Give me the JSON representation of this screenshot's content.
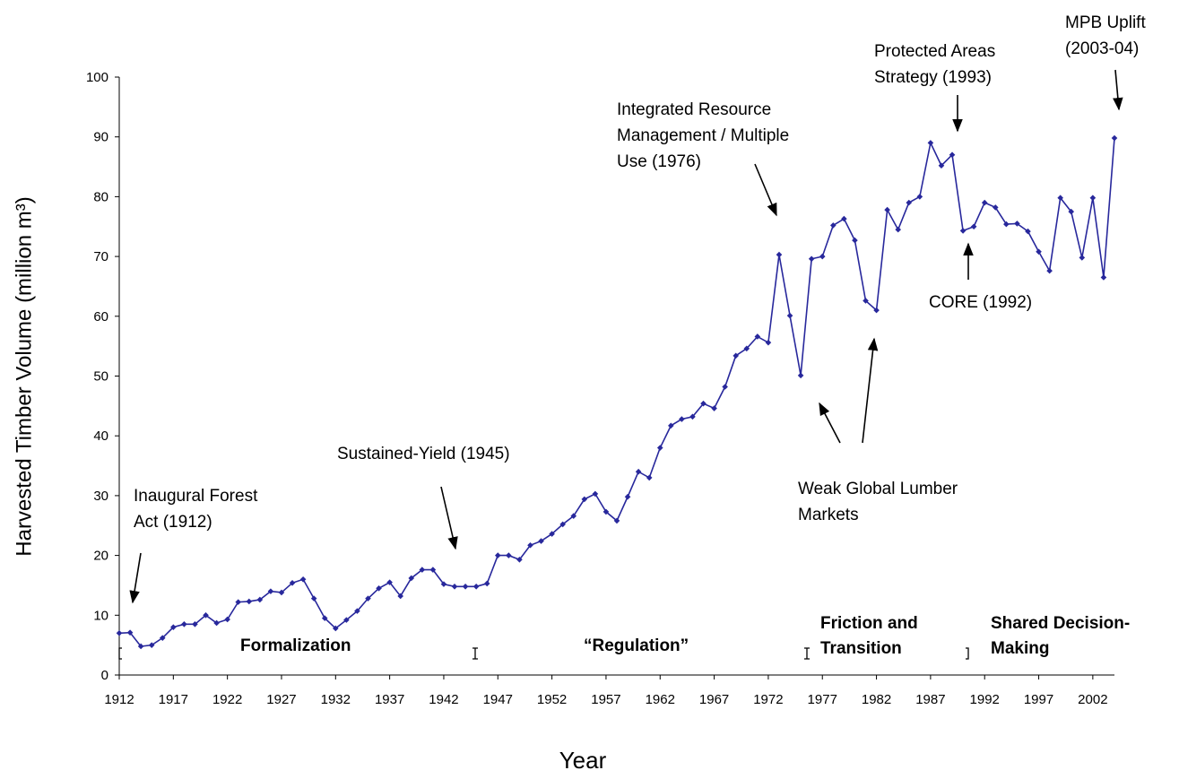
{
  "chart_data": {
    "type": "line",
    "ylabel": "Harvested Timber Volume (million m³)",
    "xlabel": "Year",
    "x": [
      1912,
      1913,
      1914,
      1915,
      1916,
      1917,
      1918,
      1919,
      1920,
      1921,
      1922,
      1923,
      1924,
      1925,
      1926,
      1927,
      1928,
      1929,
      1930,
      1931,
      1932,
      1933,
      1934,
      1935,
      1936,
      1937,
      1938,
      1939,
      1940,
      1941,
      1942,
      1943,
      1944,
      1945,
      1946,
      1947,
      1948,
      1949,
      1950,
      1951,
      1952,
      1953,
      1954,
      1955,
      1956,
      1957,
      1958,
      1959,
      1960,
      1961,
      1962,
      1963,
      1964,
      1965,
      1966,
      1967,
      1968,
      1969,
      1970,
      1971,
      1972,
      1973,
      1974,
      1975,
      1976,
      1977,
      1978,
      1979,
      1980,
      1981,
      1982,
      1983,
      1984,
      1985,
      1986,
      1987,
      1988,
      1989,
      1990,
      1991,
      1992,
      1993,
      1994,
      1995,
      1996,
      1997,
      1998,
      1999,
      2000,
      2001,
      2002,
      2003,
      2004
    ],
    "series": [
      {
        "color": "#28289c",
        "values": [
          7,
          7.1,
          4.8,
          5,
          6.2,
          8,
          8.5,
          8.5,
          10,
          8.7,
          9.3,
          12.2,
          12.3,
          12.6,
          14,
          13.8,
          15.4,
          16,
          12.8,
          9.5,
          7.8,
          9.2,
          10.7,
          12.8,
          14.5,
          15.5,
          13.2,
          16.2,
          17.6,
          17.6,
          15.2,
          14.8,
          14.8,
          14.8,
          15.3,
          20,
          20,
          19.3,
          21.7,
          22.4,
          23.6,
          25.2,
          26.6,
          29.4,
          30.3,
          27.3,
          25.8,
          29.8,
          34,
          33,
          38,
          41.7,
          42.8,
          43.2,
          45.4,
          44.6,
          48.2,
          53.4,
          54.6,
          56.6,
          55.6,
          70.3,
          60.1,
          50.1,
          69.6,
          70,
          75.2,
          76.3,
          72.7,
          62.6,
          61,
          77.8,
          74.5,
          79,
          80,
          89,
          85.2,
          87,
          74.3,
          75,
          79,
          78.2,
          75.4,
          75.5,
          74.2,
          70.8,
          67.6,
          79.8,
          77.5,
          69.8,
          79.8,
          66.5,
          89.8
        ]
      }
    ],
    "xlim": [
      1912,
      2004
    ],
    "ylim": [
      0,
      100
    ],
    "xticks": [
      1912,
      1917,
      1922,
      1927,
      1932,
      1937,
      1942,
      1947,
      1952,
      1957,
      1962,
      1967,
      1972,
      1977,
      1982,
      1987,
      1992,
      1997,
      2002
    ],
    "yticks": [
      0,
      10,
      20,
      30,
      40,
      50,
      60,
      70,
      80,
      90,
      100
    ],
    "annotations": [
      {
        "lines": [
          "Inaugural Forest",
          "Act (1912)"
        ]
      },
      {
        "lines": [
          "Sustained-Yield (1945)"
        ]
      },
      {
        "lines": [
          "Integrated Resource",
          "Management / Multiple",
          "Use (1976)"
        ]
      },
      {
        "lines": [
          "Protected Areas",
          "Strategy (1993)"
        ]
      },
      {
        "lines": [
          "MPB Uplift",
          "(2003-04)"
        ]
      },
      {
        "lines": [
          "CORE (1992)"
        ]
      },
      {
        "lines": [
          "Weak Global Lumber",
          "Markets"
        ]
      }
    ],
    "eras": [
      {
        "lines": [
          "Formalization"
        ]
      },
      {
        "lines": [
          "“Regulation”"
        ]
      },
      {
        "lines": [
          "Friction and",
          "Transition"
        ]
      },
      {
        "lines": [
          "Shared Decision-",
          "Making"
        ]
      }
    ]
  }
}
